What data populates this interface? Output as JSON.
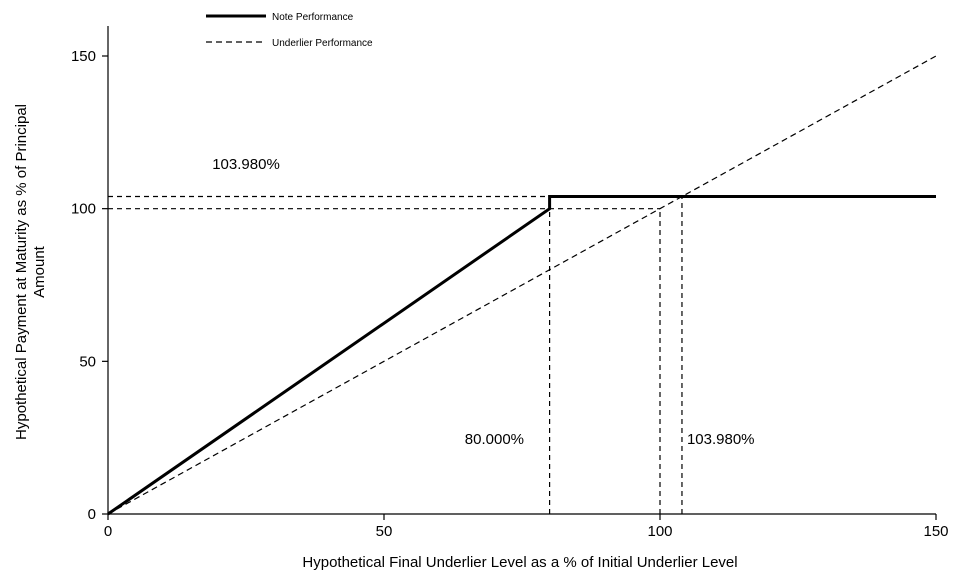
{
  "chart_data": {
    "type": "line",
    "xlabel": "Hypothetical Final Underlier Level as a % of Initial Underlier Level",
    "ylabel_line1": "Hypothetical Payment at Maturity as % of Principal",
    "ylabel_line2": "Amount",
    "xlim": [
      0,
      150
    ],
    "ylim": [
      0,
      150
    ],
    "xticks": [
      0,
      50,
      100,
      150
    ],
    "yticks": [
      0,
      50,
      100,
      150
    ],
    "grid": false,
    "legend_position": "top-left",
    "series": [
      {
        "name": "Note Performance",
        "style": "solid",
        "color": "#000000",
        "x": [
          0,
          80,
          80,
          150
        ],
        "y": [
          0,
          100,
          103.98,
          103.98
        ]
      },
      {
        "name": "Underlier Performance",
        "style": "dashed",
        "color": "#000000",
        "x": [
          0,
          150
        ],
        "y": [
          0,
          150
        ]
      }
    ],
    "reference_lines": [
      {
        "kind": "horizontal",
        "y": 103.98,
        "x_from": 0,
        "x_to": 103.98
      },
      {
        "kind": "horizontal",
        "y": 100,
        "x_from": 0,
        "x_to": 100
      },
      {
        "kind": "vertical",
        "x": 80,
        "y_from": 0,
        "y_to": 103.98
      },
      {
        "kind": "vertical",
        "x": 100,
        "y_from": 0,
        "y_to": 100
      },
      {
        "kind": "vertical",
        "x": 103.98,
        "y_from": 0,
        "y_to": 103.98
      }
    ],
    "annotations": [
      {
        "text": "103.980%",
        "x": 25,
        "y": 113
      },
      {
        "text": "80.000%",
        "x": 70,
        "y": 23
      },
      {
        "text": "103.980%",
        "x": 111,
        "y": 23
      }
    ]
  }
}
